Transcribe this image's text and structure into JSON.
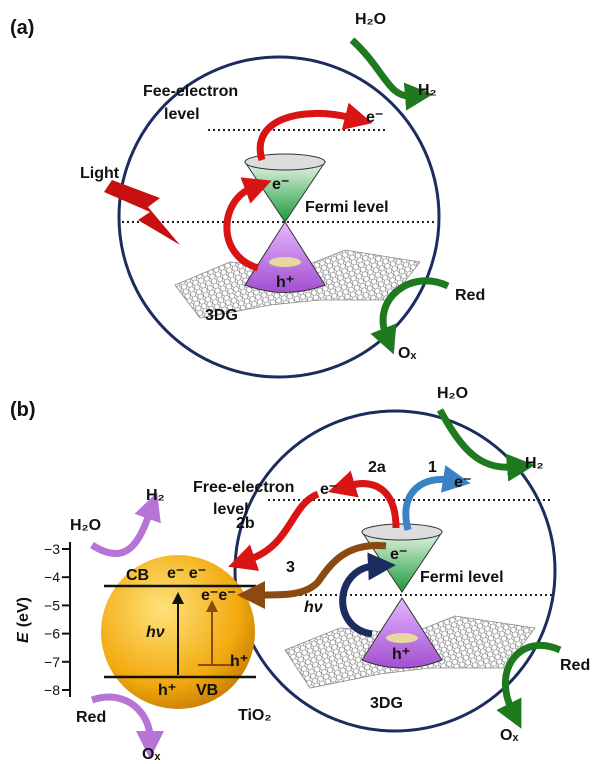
{
  "panel_a": {
    "label": "(a)",
    "water": "H₂O",
    "hydrogen": "H₂",
    "free_electron_level": [
      "Fee-electron",
      "level"
    ],
    "electron_emitted": "e⁻",
    "light": "Light",
    "electron": "e⁻",
    "fermi_level": "Fermi level",
    "hole": "h⁺",
    "material": "3DG",
    "reductant": "Red",
    "oxidized": "Oₓ"
  },
  "panel_b": {
    "label": "(b)",
    "water": "H₂O",
    "hydrogen": "H₂",
    "free_electron_level": [
      "Free-electron",
      "level"
    ],
    "path_2a": "2a",
    "path_1": "1",
    "electron_2a": "e⁻",
    "electron_1": "e⁻",
    "path_2b": "2b",
    "tio2_hydrogen": "H₂",
    "tio2_water": "H₂O",
    "axis": {
      "symbol": "E",
      "unit": "(eV)",
      "ticks": [
        {
          "value": -3,
          "label": "−3"
        },
        {
          "value": -4,
          "label": "−4"
        },
        {
          "value": -5,
          "label": "−5"
        },
        {
          "value": -6,
          "label": "−6"
        },
        {
          "value": -7,
          "label": "−7"
        },
        {
          "value": -8,
          "label": "−8"
        }
      ]
    },
    "cb": "CB",
    "cb_electrons": "e⁻ e⁻",
    "transferred_electrons": "e⁻e⁻",
    "tio2_excitation": "hν",
    "tio2_hole_right": "h⁺",
    "vb_hole": "h⁺",
    "vb": "VB",
    "tio2": "TiO₂",
    "tio2_reductant": "Red",
    "tio2_oxidized": "Oₓ",
    "path_3": "3",
    "graphene_excitation": "hν",
    "electron": "e⁻",
    "fermi_level": "Fermi level",
    "hole": "h⁺",
    "material": "3DG",
    "reductant": "Red",
    "oxidized": "Oₓ"
  }
}
